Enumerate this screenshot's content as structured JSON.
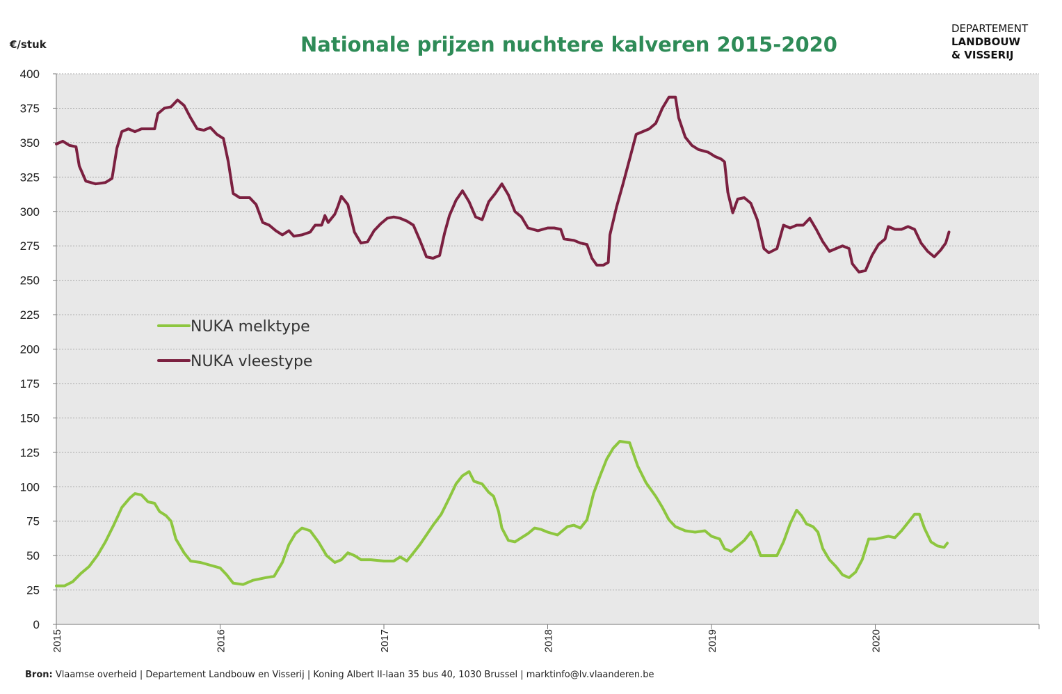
{
  "chart_data": {
    "type": "line",
    "title": "Nationale prijzen nuchtere kalveren 2015-2020",
    "ylabel": "€/stuk",
    "xlabel": "",
    "ylim": [
      0,
      400
    ],
    "xlim": [
      2015,
      2021
    ],
    "yticks": [
      "0",
      "25",
      "50",
      "75",
      "100",
      "125",
      "150",
      "175",
      "200",
      "225",
      "250",
      "275",
      "300",
      "325",
      "350",
      "375",
      "400"
    ],
    "xticks": [
      "2015",
      "2016",
      "2017",
      "2018",
      "2019",
      "2020"
    ],
    "grid": true,
    "legend_position": "center-left",
    "series": [
      {
        "name": "NUKA melktype",
        "color": "#8dc63f",
        "points": [
          [
            2015.0,
            28
          ],
          [
            2015.05,
            28
          ],
          [
            2015.1,
            31
          ],
          [
            2015.15,
            37
          ],
          [
            2015.2,
            42
          ],
          [
            2015.25,
            50
          ],
          [
            2015.3,
            60
          ],
          [
            2015.35,
            72
          ],
          [
            2015.4,
            85
          ],
          [
            2015.45,
            92
          ],
          [
            2015.48,
            95
          ],
          [
            2015.52,
            94
          ],
          [
            2015.56,
            89
          ],
          [
            2015.6,
            88
          ],
          [
            2015.63,
            82
          ],
          [
            2015.67,
            79
          ],
          [
            2015.7,
            75
          ],
          [
            2015.73,
            62
          ],
          [
            2015.78,
            52
          ],
          [
            2015.82,
            46
          ],
          [
            2015.88,
            45
          ],
          [
            2015.94,
            43
          ],
          [
            2016.0,
            41
          ],
          [
            2016.04,
            36
          ],
          [
            2016.08,
            30
          ],
          [
            2016.14,
            29
          ],
          [
            2016.2,
            32
          ],
          [
            2016.28,
            34
          ],
          [
            2016.33,
            35
          ],
          [
            2016.38,
            45
          ],
          [
            2016.42,
            58
          ],
          [
            2016.46,
            66
          ],
          [
            2016.5,
            70
          ],
          [
            2016.55,
            68
          ],
          [
            2016.6,
            60
          ],
          [
            2016.65,
            50
          ],
          [
            2016.7,
            45
          ],
          [
            2016.74,
            47
          ],
          [
            2016.78,
            52
          ],
          [
            2016.82,
            50
          ],
          [
            2016.86,
            47
          ],
          [
            2016.92,
            47
          ],
          [
            2017.0,
            46
          ],
          [
            2017.06,
            46
          ],
          [
            2017.1,
            49
          ],
          [
            2017.14,
            46
          ],
          [
            2017.18,
            52
          ],
          [
            2017.22,
            58
          ],
          [
            2017.26,
            65
          ],
          [
            2017.3,
            72
          ],
          [
            2017.35,
            80
          ],
          [
            2017.4,
            92
          ],
          [
            2017.44,
            102
          ],
          [
            2017.48,
            108
          ],
          [
            2017.52,
            111
          ],
          [
            2017.55,
            104
          ],
          [
            2017.6,
            102
          ],
          [
            2017.64,
            96
          ],
          [
            2017.67,
            93
          ],
          [
            2017.7,
            82
          ],
          [
            2017.72,
            70
          ],
          [
            2017.76,
            61
          ],
          [
            2017.8,
            60
          ],
          [
            2017.84,
            63
          ],
          [
            2017.88,
            66
          ],
          [
            2017.92,
            70
          ],
          [
            2017.96,
            69
          ],
          [
            2018.0,
            67
          ],
          [
            2018.06,
            65
          ],
          [
            2018.12,
            71
          ],
          [
            2018.16,
            72
          ],
          [
            2018.2,
            70
          ],
          [
            2018.24,
            76
          ],
          [
            2018.28,
            95
          ],
          [
            2018.32,
            108
          ],
          [
            2018.36,
            120
          ],
          [
            2018.4,
            128
          ],
          [
            2018.44,
            133
          ],
          [
            2018.5,
            132
          ],
          [
            2018.55,
            115
          ],
          [
            2018.6,
            103
          ],
          [
            2018.66,
            93
          ],
          [
            2018.7,
            85
          ],
          [
            2018.74,
            76
          ],
          [
            2018.78,
            71
          ],
          [
            2018.84,
            68
          ],
          [
            2018.9,
            67
          ],
          [
            2018.96,
            68
          ],
          [
            2019.0,
            64
          ],
          [
            2019.05,
            62
          ],
          [
            2019.08,
            55
          ],
          [
            2019.12,
            53
          ],
          [
            2019.16,
            57
          ],
          [
            2019.2,
            61
          ],
          [
            2019.24,
            67
          ],
          [
            2019.27,
            60
          ],
          [
            2019.3,
            50
          ],
          [
            2019.36,
            50
          ],
          [
            2019.4,
            50
          ],
          [
            2019.44,
            60
          ],
          [
            2019.48,
            73
          ],
          [
            2019.52,
            83
          ],
          [
            2019.55,
            79
          ],
          [
            2019.58,
            73
          ],
          [
            2019.62,
            71
          ],
          [
            2019.65,
            67
          ],
          [
            2019.68,
            55
          ],
          [
            2019.72,
            47
          ],
          [
            2019.76,
            42
          ],
          [
            2019.8,
            36
          ],
          [
            2019.84,
            34
          ],
          [
            2019.88,
            38
          ],
          [
            2019.92,
            47
          ],
          [
            2019.96,
            62
          ],
          [
            2020.0,
            62
          ],
          [
            2020.04,
            63
          ],
          [
            2020.08,
            64
          ],
          [
            2020.12,
            63
          ],
          [
            2020.16,
            68
          ],
          [
            2020.2,
            74
          ],
          [
            2020.24,
            80
          ],
          [
            2020.27,
            80
          ],
          [
            2020.3,
            70
          ],
          [
            2020.34,
            60
          ],
          [
            2020.38,
            57
          ],
          [
            2020.42,
            56
          ],
          [
            2020.44,
            59
          ]
        ]
      },
      {
        "name": "NUKA vleestype",
        "color": "#7b2040",
        "points": [
          [
            2015.0,
            349
          ],
          [
            2015.04,
            351
          ],
          [
            2015.08,
            348
          ],
          [
            2015.12,
            347
          ],
          [
            2015.14,
            333
          ],
          [
            2015.18,
            322
          ],
          [
            2015.24,
            320
          ],
          [
            2015.3,
            321
          ],
          [
            2015.34,
            324
          ],
          [
            2015.37,
            346
          ],
          [
            2015.4,
            358
          ],
          [
            2015.44,
            360
          ],
          [
            2015.48,
            358
          ],
          [
            2015.52,
            360
          ],
          [
            2015.6,
            360
          ],
          [
            2015.62,
            371
          ],
          [
            2015.66,
            375
          ],
          [
            2015.7,
            376
          ],
          [
            2015.74,
            381
          ],
          [
            2015.78,
            377
          ],
          [
            2015.82,
            368
          ],
          [
            2015.86,
            360
          ],
          [
            2015.9,
            359
          ],
          [
            2015.94,
            361
          ],
          [
            2015.98,
            356
          ],
          [
            2016.02,
            353
          ],
          [
            2016.05,
            336
          ],
          [
            2016.08,
            313
          ],
          [
            2016.12,
            310
          ],
          [
            2016.18,
            310
          ],
          [
            2016.22,
            305
          ],
          [
            2016.26,
            292
          ],
          [
            2016.3,
            290
          ],
          [
            2016.34,
            286
          ],
          [
            2016.38,
            283
          ],
          [
            2016.42,
            286
          ],
          [
            2016.45,
            282
          ],
          [
            2016.5,
            283
          ],
          [
            2016.55,
            285
          ],
          [
            2016.58,
            290
          ],
          [
            2016.62,
            290
          ],
          [
            2016.64,
            297
          ],
          [
            2016.66,
            292
          ],
          [
            2016.7,
            298
          ],
          [
            2016.72,
            304
          ],
          [
            2016.74,
            311
          ],
          [
            2016.78,
            305
          ],
          [
            2016.82,
            285
          ],
          [
            2016.86,
            277
          ],
          [
            2016.9,
            278
          ],
          [
            2016.94,
            286
          ],
          [
            2016.98,
            291
          ],
          [
            2017.02,
            295
          ],
          [
            2017.06,
            296
          ],
          [
            2017.1,
            295
          ],
          [
            2017.14,
            293
          ],
          [
            2017.18,
            290
          ],
          [
            2017.22,
            279
          ],
          [
            2017.26,
            267
          ],
          [
            2017.3,
            266
          ],
          [
            2017.34,
            268
          ],
          [
            2017.37,
            284
          ],
          [
            2017.4,
            297
          ],
          [
            2017.44,
            308
          ],
          [
            2017.48,
            315
          ],
          [
            2017.52,
            307
          ],
          [
            2017.56,
            296
          ],
          [
            2017.6,
            294
          ],
          [
            2017.64,
            307
          ],
          [
            2017.68,
            313
          ],
          [
            2017.72,
            320
          ],
          [
            2017.76,
            312
          ],
          [
            2017.8,
            300
          ],
          [
            2017.84,
            296
          ],
          [
            2017.88,
            288
          ],
          [
            2017.94,
            286
          ],
          [
            2018.0,
            288
          ],
          [
            2018.04,
            288
          ],
          [
            2018.08,
            287
          ],
          [
            2018.1,
            280
          ],
          [
            2018.16,
            279
          ],
          [
            2018.2,
            277
          ],
          [
            2018.24,
            276
          ],
          [
            2018.27,
            266
          ],
          [
            2018.3,
            261
          ],
          [
            2018.34,
            261
          ],
          [
            2018.37,
            263
          ],
          [
            2018.38,
            283
          ],
          [
            2018.42,
            303
          ],
          [
            2018.46,
            320
          ],
          [
            2018.5,
            338
          ],
          [
            2018.54,
            356
          ],
          [
            2018.58,
            358
          ],
          [
            2018.62,
            360
          ],
          [
            2018.66,
            364
          ],
          [
            2018.7,
            375
          ],
          [
            2018.74,
            383
          ],
          [
            2018.78,
            383
          ],
          [
            2018.8,
            368
          ],
          [
            2018.84,
            354
          ],
          [
            2018.88,
            348
          ],
          [
            2018.92,
            345
          ],
          [
            2018.98,
            343
          ],
          [
            2019.02,
            340
          ],
          [
            2019.06,
            338
          ],
          [
            2019.08,
            336
          ],
          [
            2019.1,
            314
          ],
          [
            2019.13,
            299
          ],
          [
            2019.16,
            309
          ],
          [
            2019.2,
            310
          ],
          [
            2019.24,
            306
          ],
          [
            2019.28,
            294
          ],
          [
            2019.32,
            273
          ],
          [
            2019.35,
            270
          ],
          [
            2019.4,
            273
          ],
          [
            2019.44,
            290
          ],
          [
            2019.48,
            288
          ],
          [
            2019.52,
            290
          ],
          [
            2019.56,
            290
          ],
          [
            2019.6,
            295
          ],
          [
            2019.64,
            287
          ],
          [
            2019.68,
            278
          ],
          [
            2019.72,
            271
          ],
          [
            2019.76,
            273
          ],
          [
            2019.8,
            275
          ],
          [
            2019.84,
            273
          ],
          [
            2019.86,
            262
          ],
          [
            2019.9,
            256
          ],
          [
            2019.94,
            257
          ],
          [
            2019.98,
            268
          ],
          [
            2020.02,
            276
          ],
          [
            2020.06,
            280
          ],
          [
            2020.08,
            289
          ],
          [
            2020.12,
            287
          ],
          [
            2020.16,
            287
          ],
          [
            2020.2,
            289
          ],
          [
            2020.24,
            287
          ],
          [
            2020.28,
            277
          ],
          [
            2020.32,
            271
          ],
          [
            2020.36,
            267
          ],
          [
            2020.4,
            272
          ],
          [
            2020.43,
            277
          ],
          [
            2020.45,
            285
          ]
        ]
      }
    ]
  },
  "logo": {
    "line1": "DEPARTEMENT",
    "line2": "LANDBOUW",
    "line3": "& VISSERIJ"
  },
  "source": {
    "label": "Bron:",
    "text": " Vlaamse overheid | Departement Landbouw en Visserij | Koning Albert II-laan 35 bus 40, 1030 Brussel | marktinfo@lv.vlaanderen.be"
  }
}
